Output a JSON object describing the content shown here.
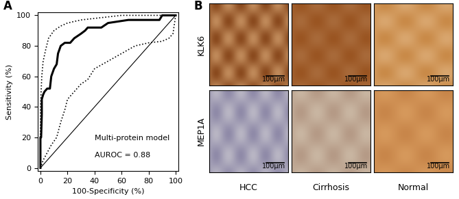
{
  "chart_data": {
    "type": "line",
    "title": "A",
    "x_label": "100-Specificity (%)",
    "y_label": "Sensitivity (%)",
    "xlim": [
      -2,
      102
    ],
    "ylim": [
      -2,
      102
    ],
    "xticks": [
      0,
      20,
      40,
      60,
      80,
      100
    ],
    "yticks": [
      0,
      20,
      40,
      60,
      80,
      100
    ],
    "grid": false,
    "annotations": [
      "Multi-protein model",
      "AUROC = 0.88"
    ],
    "series": [
      {
        "color": "#000000",
        "line_style": "solid",
        "x": [
          0,
          0,
          0.5,
          1,
          1,
          2,
          3,
          5,
          7,
          8,
          10,
          12,
          13,
          15,
          18,
          22,
          25,
          30,
          33,
          35,
          45,
          50,
          65,
          88,
          90,
          100
        ],
        "values": [
          0,
          20,
          20,
          35,
          45,
          48,
          50,
          52,
          52,
          60,
          65,
          68,
          75,
          80,
          82,
          82,
          85,
          88,
          90,
          92,
          92,
          95,
          97,
          97,
          100,
          100
        ]
      },
      {
        "color": "#000000",
        "line_style": "dotted",
        "x": [
          0,
          0,
          1,
          2,
          4,
          6,
          10,
          15,
          20,
          30,
          40,
          60,
          100
        ],
        "values": [
          0,
          40,
          60,
          70,
          78,
          85,
          90,
          93,
          95,
          97,
          98,
          100,
          100
        ]
      },
      {
        "color": "#000000",
        "line_style": "dotted",
        "x": [
          0,
          2,
          5,
          8,
          12,
          15,
          18,
          20,
          25,
          30,
          35,
          40,
          50,
          60,
          70,
          80,
          90,
          95,
          98,
          100
        ],
        "values": [
          0,
          5,
          10,
          15,
          20,
          30,
          38,
          45,
          50,
          55,
          58,
          65,
          70,
          75,
          80,
          82,
          83,
          85,
          88,
          100
        ]
      },
      {
        "color": "#000000",
        "line_style": "solid",
        "x": [
          0,
          100
        ],
        "values": [
          0,
          100
        ]
      }
    ]
  },
  "image_panel": {
    "label": "B",
    "rows": [
      "KLK6",
      "MEP1A"
    ],
    "columns": [
      "HCC",
      "Cirrhosis",
      "Normal"
    ],
    "scale_bar": "100μm"
  }
}
